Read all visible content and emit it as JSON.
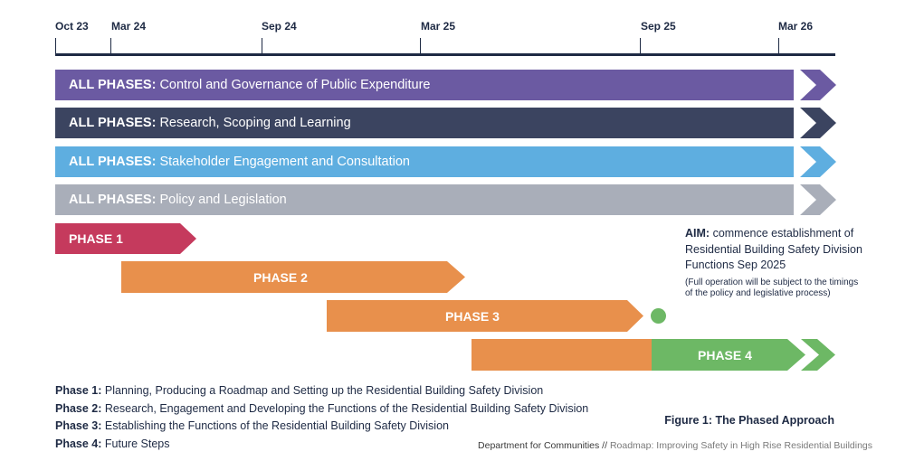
{
  "timeline": {
    "ticks": [
      "Oct 23",
      "Mar 24",
      "Sep 24",
      "Mar 25",
      "Sep 25",
      "Mar 26"
    ]
  },
  "bands": [
    {
      "prefix": "ALL PHASES:",
      "text": "Control and Governance of Public Expenditure",
      "color": "#6b5aa2"
    },
    {
      "prefix": "ALL PHASES:",
      "text": "Research, Scoping and Learning",
      "color": "#3b4460"
    },
    {
      "prefix": "ALL PHASES:",
      "text": "Stakeholder Engagement and Consultation",
      "color": "#5eaee0"
    },
    {
      "prefix": "ALL PHASES:",
      "text": "Policy and Legislation",
      "color": "#a9aeb9"
    }
  ],
  "phases": [
    {
      "label": "PHASE 1",
      "color": "#c53a5d"
    },
    {
      "label": "PHASE 2",
      "color": "#e8904c"
    },
    {
      "label": "PHASE 3",
      "color": "#e8904c"
    },
    {
      "label": "PHASE 4",
      "color": "#6db865"
    }
  ],
  "aim": {
    "title": "AIM:",
    "text": "commence establishment of Residential Building Safety Division Functions Sep 2025",
    "note": "(Full operation will be subject to the timings of the policy and legislative process)"
  },
  "legend": [
    {
      "key": "Phase 1:",
      "text": "Planning, Producing a Roadmap and Setting up the Residential Building Safety Division"
    },
    {
      "key": "Phase 2:",
      "text": "Research, Engagement and Developing the Functions of the Residential Building Safety Division"
    },
    {
      "key": "Phase 3:",
      "text": "Establishing the Functions of the Residential Building Safety Division"
    },
    {
      "key": "Phase 4:",
      "text": "Future Steps"
    }
  ],
  "caption": "Figure 1: The Phased Approach",
  "footer": {
    "org": "Department for Communities",
    "separator": "//",
    "title": "Roadmap: Improving Safety in High Rise Residential Buildings"
  }
}
